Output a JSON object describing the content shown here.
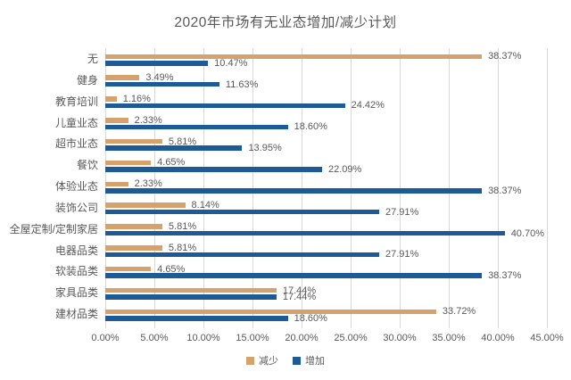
{
  "chart_data": {
    "type": "bar",
    "orientation": "horizontal",
    "title": "2020年市场有无业态增加/减少计划",
    "categories": [
      "无",
      "健身",
      "教育培训",
      "儿童业态",
      "超市业态",
      "餐饮",
      "体验业态",
      "装饰公司",
      "全屋定制/定制家居",
      "电器品类",
      "软装品类",
      "家具品类",
      "建材品类"
    ],
    "series": [
      {
        "name": "减少",
        "color": "#D5A26E",
        "values": [
          38.37,
          3.49,
          1.16,
          2.33,
          5.81,
          4.65,
          2.33,
          8.14,
          5.81,
          5.81,
          4.65,
          17.44,
          33.72
        ]
      },
      {
        "name": "增加",
        "color": "#1E5B96",
        "values": [
          10.47,
          11.63,
          24.42,
          18.6,
          13.95,
          22.09,
          38.37,
          27.91,
          40.7,
          27.91,
          38.37,
          17.44,
          18.6
        ]
      }
    ],
    "x_axis": {
      "min": 0,
      "max": 45,
      "step": 5,
      "tick_labels": [
        "0.00%",
        "5.00%",
        "10.00%",
        "15.00%",
        "20.00%",
        "25.00%",
        "30.00%",
        "35.00%",
        "40.00%",
        "45.00%"
      ]
    },
    "value_label_format": "0.00%",
    "legend_position": "bottom",
    "grid": true,
    "colors": {
      "text": "#595959",
      "grid": "#D9D9D9",
      "background": "#FFFFFF"
    }
  }
}
